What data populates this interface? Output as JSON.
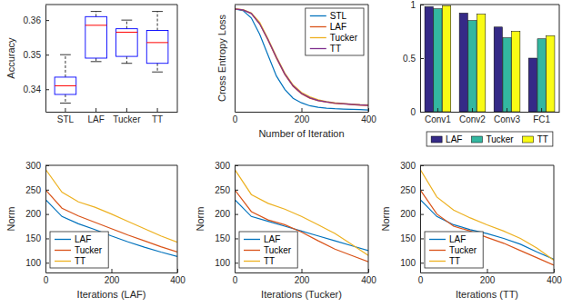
{
  "chart_data": [
    {
      "type": "box",
      "ylabel": "Accuracy",
      "categories": [
        "STL",
        "LAF",
        "Tucker",
        "TT"
      ],
      "min": [
        0.336,
        0.348,
        0.3475,
        0.345
      ],
      "q1": [
        0.3385,
        0.349,
        0.3495,
        0.3475
      ],
      "median": [
        0.341,
        0.3585,
        0.3565,
        0.3535
      ],
      "q3": [
        0.3435,
        0.361,
        0.3575,
        0.357
      ],
      "max": [
        0.35,
        0.3625,
        0.36,
        0.3625
      ],
      "ylim": [
        0.3335,
        0.3645
      ],
      "yticks": [
        0.34,
        0.35,
        0.36
      ],
      "color": "#0000ff"
    },
    {
      "type": "line",
      "xlabel": "Number of Iteration",
      "ylabel": "Cross Entropy Loss",
      "x": [
        0,
        25,
        50,
        75,
        100,
        125,
        150,
        175,
        200,
        225,
        250,
        275,
        300,
        325,
        350,
        375,
        400
      ],
      "series": [
        {
          "name": "STL",
          "color": "#0072bd",
          "values": [
            3.45,
            3.4,
            3.15,
            2.6,
            1.9,
            1.2,
            0.75,
            0.45,
            0.3,
            0.2,
            0.15,
            0.12,
            0.1,
            0.09,
            0.08,
            0.07,
            0.06
          ]
        },
        {
          "name": "LAF",
          "color": "#d95319",
          "values": [
            3.45,
            3.42,
            3.3,
            2.95,
            2.4,
            1.8,
            1.25,
            0.85,
            0.6,
            0.45,
            0.37,
            0.32,
            0.28,
            0.26,
            0.24,
            0.22,
            0.21
          ]
        },
        {
          "name": "Tucker",
          "color": "#edb120",
          "values": [
            3.45,
            3.43,
            3.32,
            3.0,
            2.45,
            1.85,
            1.3,
            0.9,
            0.65,
            0.5,
            0.4,
            0.34,
            0.3,
            0.28,
            0.26,
            0.24,
            0.23
          ]
        },
        {
          "name": "TT",
          "color": "#7e2f8e",
          "values": [
            3.45,
            3.42,
            3.3,
            2.95,
            2.42,
            1.82,
            1.27,
            0.87,
            0.62,
            0.47,
            0.38,
            0.33,
            0.29,
            0.27,
            0.25,
            0.23,
            0.22
          ]
        }
      ],
      "xlim": [
        0,
        400
      ],
      "xticks": [
        0,
        200,
        400
      ],
      "ylim": [
        0,
        3.6
      ],
      "tick_labels": "x",
      "legend": "upper right"
    },
    {
      "type": "bar",
      "categories": [
        "Conv1",
        "Conv2",
        "Conv3",
        "FC1"
      ],
      "series": [
        {
          "name": "LAF",
          "color": "#352a87",
          "values": [
            0.98,
            0.92,
            0.79,
            0.5
          ]
        },
        {
          "name": "Tucker",
          "color": "#33b7a0",
          "values": [
            0.96,
            0.85,
            0.69,
            0.68
          ]
        },
        {
          "name": "TT",
          "color": "#f9fb15",
          "values": [
            0.99,
            0.91,
            0.75,
            0.71
          ]
        }
      ],
      "ylim": [
        0,
        1
      ],
      "yticks": [
        0,
        0.5,
        1
      ],
      "legend": "bottom"
    },
    {
      "type": "line",
      "xlabel": "Iterations (LAF)",
      "ylabel": "Norm",
      "x": [
        0,
        50,
        100,
        150,
        200,
        250,
        300,
        350,
        400
      ],
      "series": [
        {
          "name": "LAF",
          "color": "#0072bd",
          "values": [
            230,
            195,
            180,
            168,
            155,
            143,
            132,
            122,
            113
          ]
        },
        {
          "name": "Tucker",
          "color": "#d95319",
          "values": [
            250,
            212,
            196,
            183,
            170,
            157,
            145,
            133,
            122
          ]
        },
        {
          "name": "TT",
          "color": "#edb120",
          "values": [
            292,
            245,
            225,
            214,
            200,
            185,
            170,
            155,
            142
          ]
        }
      ],
      "xlim": [
        0,
        400
      ],
      "xticks": [
        0,
        200,
        400
      ],
      "ylim": [
        80,
        300
      ],
      "yticks": [
        100,
        150,
        200,
        250,
        300
      ],
      "legend": "lower left"
    },
    {
      "type": "line",
      "xlabel": "Iterations (Tucker)",
      "ylabel": "Norm",
      "x": [
        0,
        50,
        100,
        150,
        200,
        250,
        300,
        350,
        400
      ],
      "series": [
        {
          "name": "LAF",
          "color": "#0072bd",
          "values": [
            230,
            195,
            185,
            175,
            165,
            155,
            145,
            135,
            125
          ]
        },
        {
          "name": "Tucker",
          "color": "#d95319",
          "values": [
            250,
            205,
            188,
            178,
            163,
            145,
            128,
            115,
            102
          ]
        },
        {
          "name": "TT",
          "color": "#edb120",
          "values": [
            292,
            240,
            222,
            210,
            195,
            178,
            160,
            138,
            115
          ]
        }
      ],
      "xlim": [
        0,
        400
      ],
      "xticks": [
        0,
        200,
        400
      ],
      "ylim": [
        80,
        300
      ],
      "yticks": [
        100,
        150,
        200,
        250,
        300
      ],
      "legend": "lower left"
    },
    {
      "type": "line",
      "xlabel": "Iterations (TT)",
      "ylabel": "Norm",
      "x": [
        0,
        50,
        100,
        150,
        200,
        250,
        300,
        350,
        400
      ],
      "series": [
        {
          "name": "LAF",
          "color": "#0072bd",
          "values": [
            230,
            195,
            178,
            168,
            160,
            150,
            138,
            122,
            107
          ]
        },
        {
          "name": "Tucker",
          "color": "#d95319",
          "values": [
            250,
            200,
            175,
            165,
            152,
            140,
            125,
            110,
            95
          ]
        },
        {
          "name": "TT",
          "color": "#edb120",
          "values": [
            292,
            235,
            208,
            192,
            178,
            165,
            150,
            130,
            105
          ]
        }
      ],
      "xlim": [
        0,
        400
      ],
      "xticks": [
        0,
        200,
        400
      ],
      "ylim": [
        80,
        300
      ],
      "yticks": [
        100,
        150,
        200,
        250,
        300
      ],
      "legend": "lower left"
    }
  ]
}
